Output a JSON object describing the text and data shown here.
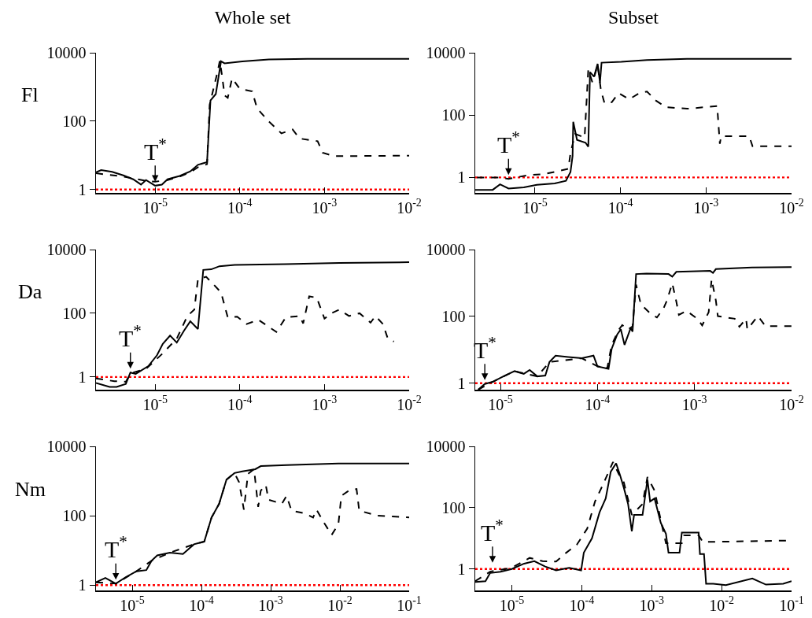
{
  "chart_data": [
    {
      "type": "line",
      "title": "Whole set",
      "ylabel": "Fl",
      "log": "xy",
      "grid": false,
      "xlim": [
        2e-06,
        0.01
      ],
      "ylim": [
        0.8,
        10000
      ],
      "xticks": [
        {
          "value": 1e-05,
          "label": "10$^{-5}$"
        },
        {
          "value": 0.0001,
          "label": "10$^{-4}$"
        },
        {
          "value": 0.001,
          "label": "10$^{-3}$"
        },
        {
          "value": 0.01,
          "label": "10$^{-2}$"
        }
      ],
      "yticks": [
        1,
        100,
        10000
      ],
      "series": [
        {
          "color": "#000000",
          "line_style": "solid",
          "x": [
            2e-06,
            2.3e-06,
            3.1e-06,
            4.2e-06,
            5.5e-06,
            6.8e-06,
            7.8e-06,
            1e-05,
            1.2e-05,
            1.4e-05,
            1.95e-05,
            2.6e-05,
            3.2e-05,
            4.1e-05,
            4.5e-05,
            5.2e-05,
            6e-05,
            6.6e-05,
            0.000107,
            0.00022,
            0.00063,
            0.01
          ],
          "values": [
            3.2,
            3.7,
            3.3,
            2.6,
            2.0,
            1.4,
            1.9,
            1.3,
            1.4,
            2.0,
            2.5,
            3.4,
            5.3,
            6.3,
            400,
            620,
            5600,
            4900,
            5600,
            6400,
            6600,
            6600
          ]
        },
        {
          "color": "#000000",
          "line_style": "dashed",
          "x": [
            2e-06,
            4.2e-06,
            7.8e-06,
            1e-05,
            1.4e-05,
            1.95e-05,
            2.6e-05,
            3.2e-05,
            4.1e-05,
            4.4e-05,
            5.5e-05,
            5.8e-05,
            6.2e-05,
            6.6e-05,
            7.2e-05,
            8.1e-05,
            0.0001,
            0.00014,
            0.00016,
            0.00022,
            0.00031,
            0.00042,
            0.00051,
            0.00083,
            0.00095,
            0.0013,
            0.01
          ],
          "values": [
            3.0,
            2.4,
            1.8,
            1.7,
            1.9,
            2.4,
            3.2,
            4.5,
            5.5,
            300,
            3000,
            5800,
            1950,
            570,
            480,
            1800,
            880,
            740,
            235,
            98,
            44,
            57,
            31,
            26,
            12,
            9.5,
            9.8
          ]
        }
      ],
      "ref_lines": [
        {
          "axis": "y",
          "value": 1,
          "color": "#ff0000",
          "line_style": "dotted"
        }
      ],
      "annotations": [
        {
          "text": "T$^{*}$",
          "x": 1e-05,
          "y": 1.3
        }
      ]
    },
    {
      "type": "line",
      "title": "Subset",
      "log": "xy",
      "grid": false,
      "xlim": [
        2e-06,
        0.01
      ],
      "ylim": [
        0.32,
        10000
      ],
      "xticks": [
        {
          "value": 1e-05,
          "label": "10$^{-5}$"
        },
        {
          "value": 0.0001,
          "label": "10$^{-4}$"
        },
        {
          "value": 0.001,
          "label": "10$^{-3}$"
        },
        {
          "value": 0.01,
          "label": "10$^{-2}$"
        }
      ],
      "yticks": [
        1,
        100,
        10000
      ],
      "series": [
        {
          "color": "#000000",
          "line_style": "solid",
          "x": [
            2e-06,
            3.2e-06,
            3.9e-06,
            4.9e-06,
            7.4e-06,
            1.05e-05,
            1.7e-05,
            2.3e-05,
            2.6e-05,
            2.75e-05,
            2.8e-05,
            3.1e-05,
            3.9e-05,
            4.2e-05,
            4.4e-05,
            4.9e-05,
            5.4e-05,
            5.75e-05,
            6e-05,
            0.000102,
            0.000204,
            0.0006,
            0.01
          ],
          "values": [
            0.4,
            0.4,
            0.6,
            0.44,
            0.48,
            0.58,
            0.64,
            0.78,
            1.5,
            4.9,
            61,
            16,
            13,
            9.7,
            2400,
            1700,
            4400,
            1100,
            4800,
            5100,
            5800,
            6400,
            6400
          ]
        },
        {
          "color": "#000000",
          "line_style": "dashed",
          "x": [
            2.1e-06,
            3.9e-06,
            4.9e-06,
            8.5e-06,
            1.23e-05,
            1.7e-05,
            2.45e-05,
            2.6e-05,
            2.95e-05,
            3.8e-05,
            4.2e-05,
            4.7e-05,
            5.4e-05,
            5.9e-05,
            6.5e-05,
            7.9e-05,
            9.5e-05,
            0.000126,
            0.000166,
            0.000204,
            0.00026,
            0.00034,
            0.0006,
            0.00135,
            0.00145,
            0.0015,
            0.0032,
            0.0035,
            0.01
          ],
          "values": [
            1.0,
            1.0,
            0.9,
            1.2,
            1.26,
            1.5,
            1.9,
            6,
            25,
            19,
            2900,
            1100,
            4000,
            630,
            240,
            260,
            510,
            320,
            510,
            570,
            290,
            180,
            160,
            195,
            12,
            21,
            21,
            10,
            10
          ]
        }
      ],
      "ref_lines": [
        {
          "axis": "y",
          "value": 1,
          "color": "#ff0000",
          "line_style": "dotted"
        }
      ],
      "annotations": [
        {
          "text": "T$^{*}$",
          "x": 4.9e-06,
          "y": 0.9
        }
      ]
    },
    {
      "type": "line",
      "ylabel": "Da",
      "log": "xy",
      "grid": false,
      "xlim": [
        2e-06,
        0.01
      ],
      "ylim": [
        0.4,
        10000
      ],
      "xticks": [
        {
          "value": 1e-05,
          "label": "10$^{-5}$"
        },
        {
          "value": 0.0001,
          "label": "10$^{-4}$"
        },
        {
          "value": 0.001,
          "label": "10$^{-3}$"
        },
        {
          "value": 0.01,
          "label": "10$^{-2}$"
        }
      ],
      "yticks": [
        1,
        100,
        10000
      ],
      "series": [
        {
          "color": "#000000",
          "line_style": "solid",
          "x": [
            2e-06,
            2.9e-06,
            3.5e-06,
            4.5e-06,
            5.1e-06,
            5.9e-06,
            8.3e-06,
            1.05e-05,
            1.23e-05,
            1.5e-05,
            1.8e-05,
            2.2e-05,
            2.6e-05,
            3.2e-05,
            3.7e-05,
            4.6e-05,
            5.75e-05,
            8.7e-05,
            0.00035,
            0.0015,
            0.01
          ],
          "values": [
            0.65,
            0.49,
            0.49,
            0.61,
            1.38,
            1.25,
            2.2,
            4.8,
            11,
            20,
            12,
            29,
            56,
            32,
            2300,
            2400,
            3000,
            3300,
            3500,
            3800,
            4000
          ]
        },
        {
          "color": "#000000",
          "line_style": "dashed",
          "x": [
            2e-06,
            3.3e-06,
            4.5e-06,
            5.1e-06,
            7.8e-06,
            1.2e-05,
            1.8e-05,
            2.4e-05,
            2.9e-05,
            3.2e-05,
            4e-05,
            4.9e-05,
            6e-05,
            7.2e-05,
            9.3e-05,
            0.00012,
            0.000166,
            0.00027,
            0.00035,
            0.00051,
            0.00056,
            0.00066,
            0.00081,
            0.001,
            0.0012,
            0.0015,
            0.00195,
            0.0026,
            0.0035,
            0.004,
            0.0049,
            0.0056,
            0.0066
          ],
          "values": [
            0.9,
            0.74,
            0.71,
            1.3,
            1.8,
            5.2,
            16,
            82,
            130,
            1170,
            1400,
            800,
            450,
            75,
            78,
            46,
            62,
            26,
            75,
            82,
            48,
            340,
            310,
            68,
            100,
            130,
            82,
            100,
            51,
            82,
            46,
            16,
            13
          ]
        }
      ],
      "ref_lines": [
        {
          "axis": "y",
          "value": 1,
          "color": "#ff0000",
          "line_style": "dotted"
        }
      ],
      "annotations": [
        {
          "text": "T$^{*}$",
          "x": 5.1e-06,
          "y": 1.38
        }
      ]
    },
    {
      "type": "line",
      "log": "xy",
      "grid": false,
      "xlim": [
        5.5e-06,
        0.01
      ],
      "ylim": [
        0.64,
        10000
      ],
      "xticks": [
        {
          "value": 1e-05,
          "label": "10$^{-5}$"
        },
        {
          "value": 0.0001,
          "label": "10$^{-4}$"
        },
        {
          "value": 0.001,
          "label": "10$^{-3}$"
        },
        {
          "value": 0.01,
          "label": "10$^{-2}$"
        }
      ],
      "yticks": [
        1,
        100,
        10000
      ],
      "series": [
        {
          "color": "#000000",
          "line_style": "solid",
          "x": [
            5.9e-06,
            6.9e-06,
            8.3e-06,
            1.07e-05,
            1.4e-05,
            1.74e-05,
            2e-05,
            2.4e-05,
            2.9e-05,
            3.2e-05,
            3.7e-05,
            5e-05,
            6.9e-05,
            9.1e-05,
            0.0001,
            0.00013,
            0.00014,
            0.00016,
            0.000174,
            0.00019,
            0.00022,
            0.00023,
            0.00025,
            0.00032,
            0.00054,
            0.00059,
            0.00065,
            0.00145,
            0.00155,
            0.00166,
            0.0039,
            0.01
          ],
          "values": [
            0.64,
            0.95,
            1.1,
            1.6,
            2.3,
            1.9,
            2.5,
            1.6,
            1.7,
            4.3,
            6.7,
            6.1,
            5.6,
            6.7,
            3.2,
            2.7,
            10.6,
            29,
            41,
            14,
            45,
            35,
            1850,
            1900,
            1850,
            1550,
            2150,
            2300,
            2000,
            2600,
            2900,
            3000
          ]
        },
        {
          "color": "#000000",
          "line_style": "dashed",
          "x": [
            5.9e-06,
            8.3e-06,
            1.4e-05,
            2.4e-05,
            3.2e-05,
            6.9e-05,
            0.0001,
            0.000126,
            0.00014,
            0.000166,
            0.00018,
            0.000204,
            0.00023,
            0.00025,
            0.00028,
            0.00035,
            0.00041,
            0.00048,
            0.00052,
            0.00059,
            0.00065,
            0.00069,
            0.00083,
            0.00107,
            0.0012,
            0.0014,
            0.0015,
            0.00166,
            0.00174,
            0.0026,
            0.0029,
            0.0034,
            0.0035,
            0.0045,
            0.0054,
            0.01
          ],
          "values": [
            0.64,
            1.1,
            2.3,
            1.6,
            4.3,
            5.6,
            3.2,
            2.8,
            14,
            40,
            55,
            40,
            50,
            890,
            230,
            122,
            93,
            175,
            300,
            980,
            275,
            111,
            146,
            85,
            54,
            134,
            1290,
            300,
            102,
            85,
            49,
            85,
            41,
            102,
            51,
            51
          ]
        }
      ],
      "ref_lines": [
        {
          "axis": "y",
          "value": 1,
          "color": "#ff0000",
          "line_style": "dotted"
        }
      ],
      "annotations": [
        {
          "text": "T$^{*}$",
          "x": 6.9e-06,
          "y": 0.95
        }
      ]
    },
    {
      "type": "line",
      "ylabel": "Nm",
      "log": "xy",
      "grid": false,
      "xlim": [
        3e-06,
        0.1
      ],
      "ylim": [
        0.7,
        10000
      ],
      "xticks": [
        {
          "value": 1e-05,
          "label": "10$^{-5}$"
        },
        {
          "value": 0.0001,
          "label": "10$^{-4}$"
        },
        {
          "value": 0.001,
          "label": "10$^{-3}$"
        },
        {
          "value": 0.01,
          "label": "10$^{-2}$"
        },
        {
          "value": 0.1,
          "label": "10$^{-1}$"
        }
      ],
      "yticks": [
        1,
        100,
        10000
      ],
      "series": [
        {
          "color": "#000000",
          "line_style": "solid",
          "x": [
            3e-06,
            4.1e-06,
            5.8e-06,
            8.1e-06,
            1.15e-05,
            1.6e-05,
            1.9e-05,
            2.3e-05,
            3.5e-05,
            5.4e-05,
            7.8e-05,
            0.00011,
            0.00014,
            0.00018,
            0.00023,
            0.0003,
            0.00039,
            0.0006,
            0.00072,
            0.0017,
            0.0095,
            0.1
          ],
          "values": [
            1.2,
            1.6,
            1.1,
            1.7,
            2.5,
            2.7,
            5,
            7.2,
            8.6,
            7.9,
            15,
            18,
            89,
            220,
            1100,
            1700,
            1900,
            2200,
            2700,
            2900,
            3200,
            3200
          ]
        },
        {
          "color": "#000000",
          "line_style": "dashed",
          "x": [
            3e-06,
            5.8e-06,
            1.15e-05,
            1.9e-05,
            3.5e-05,
            7.8e-05,
            0.00011,
            0.00014,
            0.00018,
            0.00023,
            0.0003,
            0.00035,
            0.00041,
            0.00047,
            0.000575,
            0.00066,
            0.00072,
            0.00085,
            0.00093,
            0.00145,
            0.0017,
            0.002,
            0.0031,
            0.0041,
            0.0046,
            0.00575,
            0.0076,
            0.0095,
            0.0105,
            0.0135,
            0.0174,
            0.019,
            0.035,
            0.1
          ],
          "values": [
            1.2,
            1.1,
            2.5,
            5,
            8.6,
            15,
            18,
            89,
            220,
            1100,
            1700,
            920,
            150,
            1600,
            2200,
            180,
            530,
            770,
            290,
            220,
            375,
            140,
            117,
            89,
            150,
            68,
            28,
            57,
            375,
            530,
            590,
            140,
            100,
            89
          ]
        }
      ],
      "ref_lines": [
        {
          "axis": "y",
          "value": 1,
          "color": "#ff0000",
          "line_style": "dotted"
        }
      ],
      "annotations": [
        {
          "text": "T$^{*}$",
          "x": 5.8e-06,
          "y": 1.1
        }
      ]
    },
    {
      "type": "line",
      "log": "xy",
      "grid": false,
      "xlim": [
        3e-06,
        0.1
      ],
      "ylim": [
        0.2,
        10000
      ],
      "xticks": [
        {
          "value": 1e-05,
          "label": "10$^{-5}$"
        },
        {
          "value": 0.0001,
          "label": "10$^{-4}$"
        },
        {
          "value": 0.001,
          "label": "10$^{-3}$"
        },
        {
          "value": 0.01,
          "label": "10$^{-2}$"
        },
        {
          "value": 0.1,
          "label": "10$^{-1}$"
        }
      ],
      "yticks": [
        1,
        100,
        10000
      ],
      "series": [
        {
          "color": "#000000",
          "line_style": "solid",
          "x": [
            3e-06,
            4.2e-06,
            4.9e-06,
            6.9e-06,
            1e-05,
            1.5e-05,
            2.1e-05,
            3e-05,
            4.3e-05,
            6.6e-05,
            9.8e-05,
            0.000107,
            0.00014,
            0.00018,
            0.00022,
            0.00026,
            0.00031,
            0.00035,
            0.0004,
            0.00046,
            0.00052,
            0.00056,
            0.00074,
            0.00087,
            0.00095,
            0.0011,
            0.00135,
            0.0016,
            0.00174,
            0.0025,
            0.0027,
            0.0047,
            0.0049,
            0.0056,
            0.006,
            0.0076,
            0.0115,
            0.0275,
            0.043,
            0.076,
            0.1
          ],
          "values": [
            0.38,
            0.4,
            0.74,
            0.82,
            1.0,
            1.5,
            1.8,
            1.2,
            0.9,
            1.1,
            0.9,
            3.4,
            10,
            71,
            200,
            1500,
            2800,
            1230,
            445,
            132,
            17,
            58,
            58,
            820,
            160,
            200,
            32,
            14,
            3.4,
            3.4,
            15.5,
            15.5,
            3.1,
            3.1,
            0.33,
            0.33,
            0.3,
            0.49,
            0.31,
            0.33,
            0.4
          ]
        },
        {
          "color": "#000000",
          "line_style": "dashed",
          "x": [
            3e-06,
            4.9e-06,
            1e-05,
            1.8e-05,
            2.75e-05,
            4.3e-05,
            6e-05,
            8.5e-05,
            0.00012,
            0.000155,
            0.0002,
            0.00028,
            0.00034,
            0.0004,
            0.00052,
            0.00074,
            0.00087,
            0.0011,
            0.00135,
            0.0016,
            0.0027,
            0.0029,
            0.0047,
            0.0054,
            0.1
          ],
          "values": [
            0.4,
            0.82,
            1.1,
            2.3,
            1.8,
            1.76,
            3.4,
            6.2,
            21,
            160,
            550,
            3100,
            1230,
            670,
            58,
            132,
            1000,
            360,
            39,
            6.9,
            6.9,
            12.6,
            12.6,
            7.6,
            8.5
          ]
        }
      ],
      "ref_lines": [
        {
          "axis": "y",
          "value": 1,
          "color": "#ff0000",
          "line_style": "dotted"
        }
      ],
      "annotations": [
        {
          "text": "T$^{*}$",
          "x": 5.3e-06,
          "y": 1.2
        }
      ]
    }
  ]
}
